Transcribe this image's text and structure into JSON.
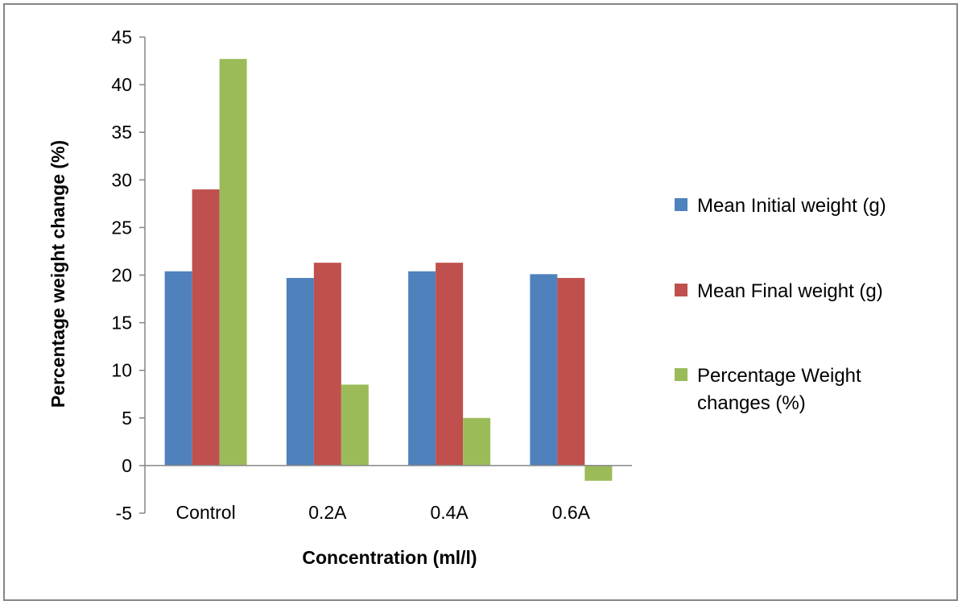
{
  "chart_data": {
    "type": "bar",
    "title": "",
    "xlabel": "Concentration (ml/l)",
    "ylabel": "Percentage weight change  (%)",
    "categories": [
      "Control",
      "0.2A",
      "0.4A",
      "0.6A"
    ],
    "ylim": [
      -5,
      45
    ],
    "yticks": [
      -5,
      0,
      5,
      10,
      15,
      20,
      25,
      30,
      35,
      40,
      45
    ],
    "grid": false,
    "legend_position": "right",
    "series": [
      {
        "name": "Mean Initial weight (g)",
        "values": [
          20.4,
          19.7,
          20.4,
          20.1
        ],
        "color": "#4f81bd"
      },
      {
        "name": "Mean Final weight (g)",
        "values": [
          29.0,
          21.3,
          21.3,
          19.7
        ],
        "color": "#c0504d"
      },
      {
        "name": "Percentage Weight changes (%)",
        "values": [
          42.7,
          8.5,
          5.0,
          -1.6
        ],
        "color": "#9bbb59"
      }
    ]
  }
}
